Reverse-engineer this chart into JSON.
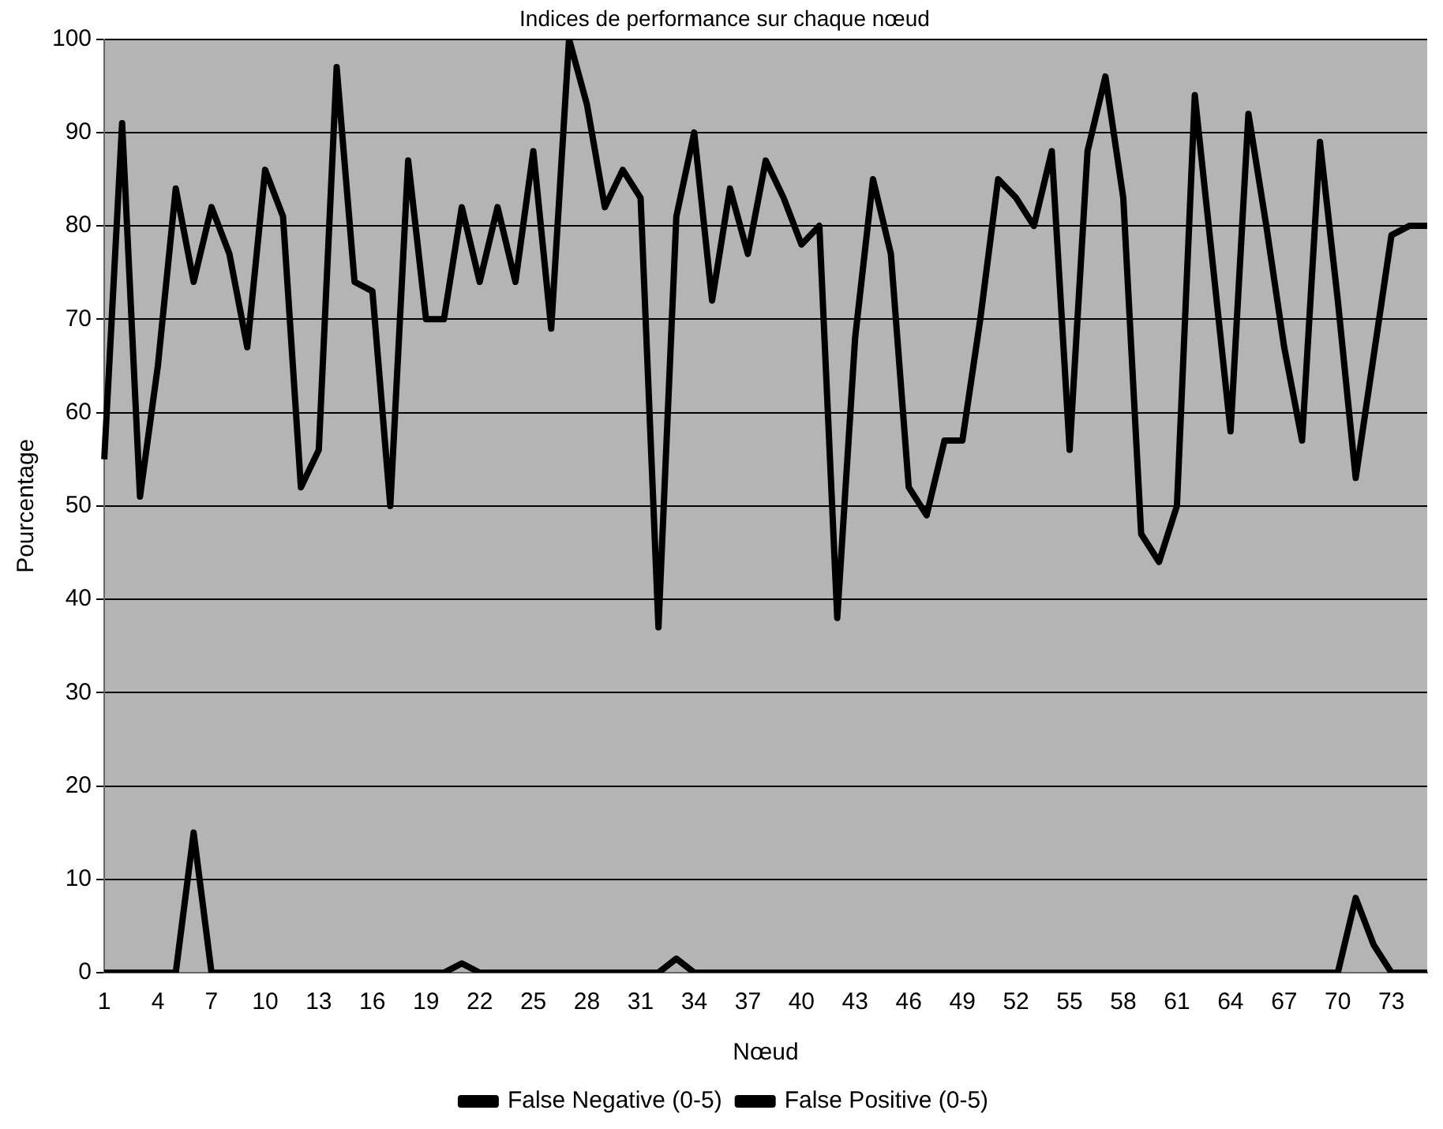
{
  "chart_data": {
    "type": "line",
    "title": "Indices de performance sur chaque nœud",
    "xlabel": "Nœud",
    "ylabel": "Pourcentage",
    "categories": [
      "1",
      null,
      null,
      "4",
      null,
      null,
      "7",
      null,
      null,
      "10",
      null,
      null,
      "13",
      null,
      null,
      "16",
      null,
      null,
      "19",
      null,
      null,
      "22",
      null,
      null,
      "25",
      null,
      null,
      "28",
      null,
      null,
      "31",
      null,
      null,
      "34",
      null,
      null,
      "37",
      null,
      null,
      "40",
      null,
      null,
      "43",
      null,
      null,
      "46",
      null,
      null,
      "49",
      null,
      null,
      "52",
      null,
      null,
      "55",
      null,
      null,
      "58",
      null,
      null,
      "61",
      null,
      null,
      "64",
      null,
      null,
      "67",
      null,
      null,
      "70",
      null,
      null,
      "73",
      null,
      null
    ],
    "series": [
      {
        "name": "False Negative (0-5)",
        "color": "#000000",
        "values": [
          55,
          91,
          51,
          65,
          84,
          74,
          82,
          77,
          67,
          86,
          81,
          52,
          56,
          97,
          74,
          73,
          50,
          87,
          70,
          70,
          82,
          74,
          82,
          74,
          88,
          69,
          100,
          93,
          82,
          86,
          83,
          37,
          81,
          90,
          72,
          84,
          77,
          87,
          83,
          78,
          80,
          38,
          68,
          85,
          77,
          52,
          49,
          57,
          57,
          70,
          85,
          83,
          80,
          88,
          56,
          88,
          96,
          83,
          47,
          44,
          50,
          94,
          76,
          58,
          92,
          80,
          67,
          57,
          89,
          72,
          53,
          66,
          79,
          80,
          80
        ]
      },
      {
        "name": "False Positive (0-5)",
        "color": "#000000",
        "values": [
          0,
          0,
          0,
          0,
          0,
          15,
          0,
          0,
          0,
          0,
          0,
          0,
          0,
          0,
          0,
          0,
          0,
          0,
          0,
          0,
          1,
          0,
          0,
          0,
          0,
          0,
          0,
          0,
          0,
          0,
          0,
          0,
          1.5,
          0,
          0,
          0,
          0,
          0,
          0,
          0,
          0,
          0,
          0,
          0,
          0,
          0,
          0,
          0,
          0,
          0,
          0,
          0,
          0,
          0,
          0,
          0,
          0,
          0,
          0,
          0,
          0,
          0,
          0,
          0,
          0,
          0,
          0,
          0,
          0,
          0,
          8,
          3,
          0,
          0,
          0
        ]
      }
    ],
    "ylim": [
      0,
      100
    ],
    "yticks": [
      0,
      10,
      20,
      30,
      40,
      50,
      60,
      70,
      80,
      90,
      100
    ],
    "grid": "y",
    "legend": "bottom",
    "marker": "none",
    "line_style": "solid"
  }
}
